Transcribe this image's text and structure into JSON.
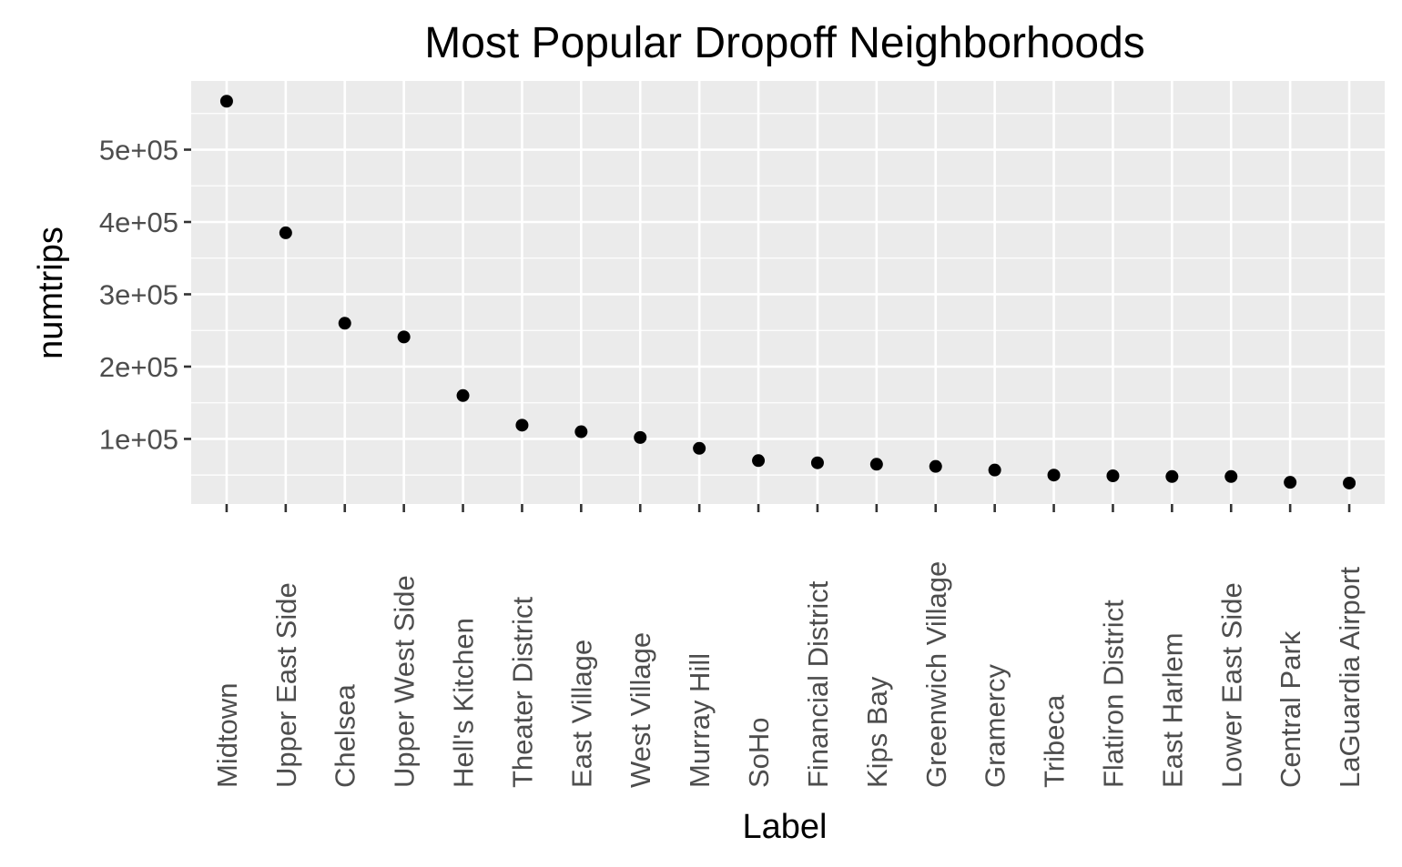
{
  "chart_data": {
    "type": "scatter",
    "title": "Most Popular Dropoff Neighborhoods",
    "xlabel": "Label",
    "ylabel": "numtrips",
    "categories": [
      "Midtown",
      "Upper East Side",
      "Chelsea",
      "Upper West Side",
      "Hell's Kitchen",
      "Theater District",
      "East Village",
      "West Village",
      "Murray Hill",
      "SoHo",
      "Financial District",
      "Kips Bay",
      "Greenwich Village",
      "Gramercy",
      "Tribeca",
      "Flatiron District",
      "East Harlem",
      "Lower East Side",
      "Central Park",
      "LaGuardia Airport"
    ],
    "values": [
      567000,
      385000,
      260000,
      241000,
      160000,
      119000,
      110000,
      102000,
      87000,
      70000,
      67000,
      65000,
      62000,
      57000,
      50000,
      49000,
      48000,
      48000,
      40000,
      39000
    ],
    "yticks": [
      100000,
      200000,
      300000,
      400000,
      500000
    ],
    "ytick_labels": [
      "1e+05",
      "2e+05",
      "3e+05",
      "4e+05",
      "5e+05"
    ],
    "ylim": [
      10000,
      595000
    ],
    "grid": true,
    "legend": "none",
    "colors": {
      "panel": "#ebebeb",
      "grid": "#ffffff",
      "point": "#000000",
      "tick_text": "#4d4d4d"
    }
  }
}
